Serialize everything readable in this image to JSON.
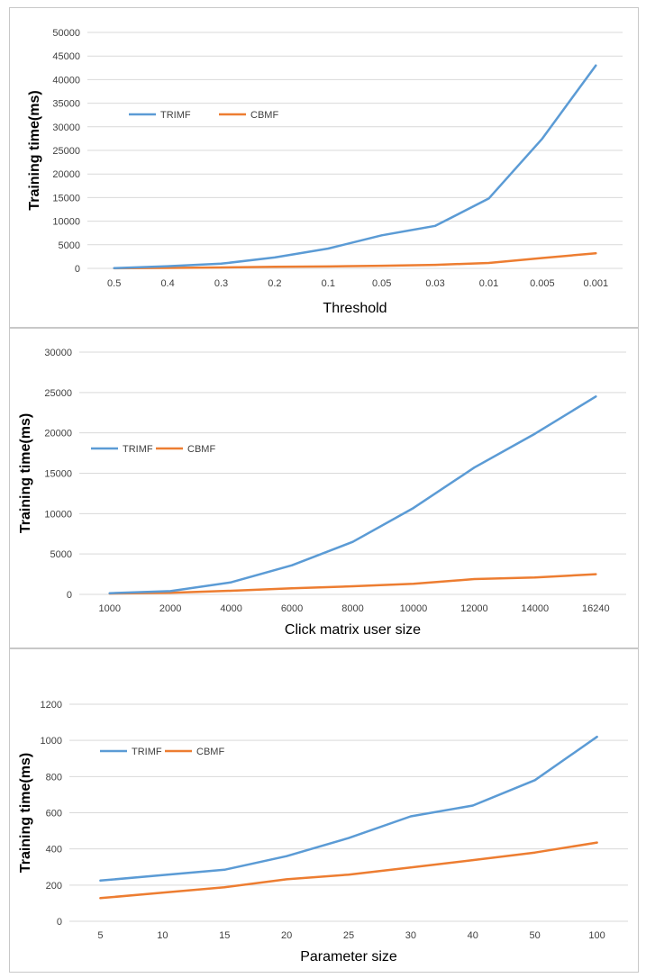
{
  "colors": {
    "TRIMF": "#5b9bd5",
    "CBMF": "#ed7d31",
    "grid": "#d9d9d9"
  },
  "chart_data": [
    {
      "type": "line",
      "categories": [
        "0.5",
        "0.4",
        "0.3",
        "0.2",
        "0.1",
        "0.05",
        "0.03",
        "0.01",
        "0.005",
        "0.001"
      ],
      "series": [
        {
          "name": "TRIMF",
          "values": [
            50,
            450,
            1000,
            2300,
            4200,
            7000,
            9000,
            14800,
            27500,
            43000
          ]
        },
        {
          "name": "CBMF",
          "values": [
            20,
            100,
            200,
            350,
            400,
            550,
            750,
            1150,
            2200,
            3200
          ]
        }
      ],
      "xlabel": "Threshold",
      "ylabel": "Training time(ms)",
      "ylim": [
        0,
        50000
      ],
      "yticks": [
        0,
        5000,
        10000,
        15000,
        20000,
        25000,
        30000,
        35000,
        40000,
        45000,
        50000
      ],
      "grid": true,
      "legend": "upper-left"
    },
    {
      "type": "line",
      "categories": [
        "1000",
        "2000",
        "4000",
        "6000",
        "8000",
        "10000",
        "12000",
        "14000",
        "16240"
      ],
      "series": [
        {
          "name": "TRIMF",
          "values": [
            150,
            400,
            1500,
            3600,
            6500,
            10700,
            15700,
            19900,
            24500
          ]
        },
        {
          "name": "CBMF",
          "values": [
            100,
            200,
            450,
            750,
            1000,
            1300,
            1900,
            2100,
            2500
          ]
        }
      ],
      "xlabel": "Click matrix user size",
      "ylabel": "Training time(ms)",
      "ylim": [
        0,
        30000
      ],
      "yticks": [
        0,
        5000,
        10000,
        15000,
        20000,
        25000,
        30000
      ],
      "grid": true,
      "legend": "upper-left"
    },
    {
      "type": "line",
      "categories": [
        "5",
        "10",
        "15",
        "20",
        "25",
        "30",
        "40",
        "50",
        "100"
      ],
      "series": [
        {
          "name": "TRIMF",
          "values": [
            225,
            255,
            285,
            360,
            460,
            580,
            640,
            780,
            1020
          ]
        },
        {
          "name": "CBMF",
          "values": [
            128,
            158,
            188,
            232,
            258,
            298,
            338,
            380,
            435
          ]
        }
      ],
      "xlabel": "Parameter size",
      "ylabel": "Training time(ms)",
      "ylim": [
        0,
        1200
      ],
      "yticks": [
        0,
        200,
        400,
        600,
        800,
        1000,
        1200
      ],
      "grid": true,
      "legend": "upper-left"
    }
  ]
}
